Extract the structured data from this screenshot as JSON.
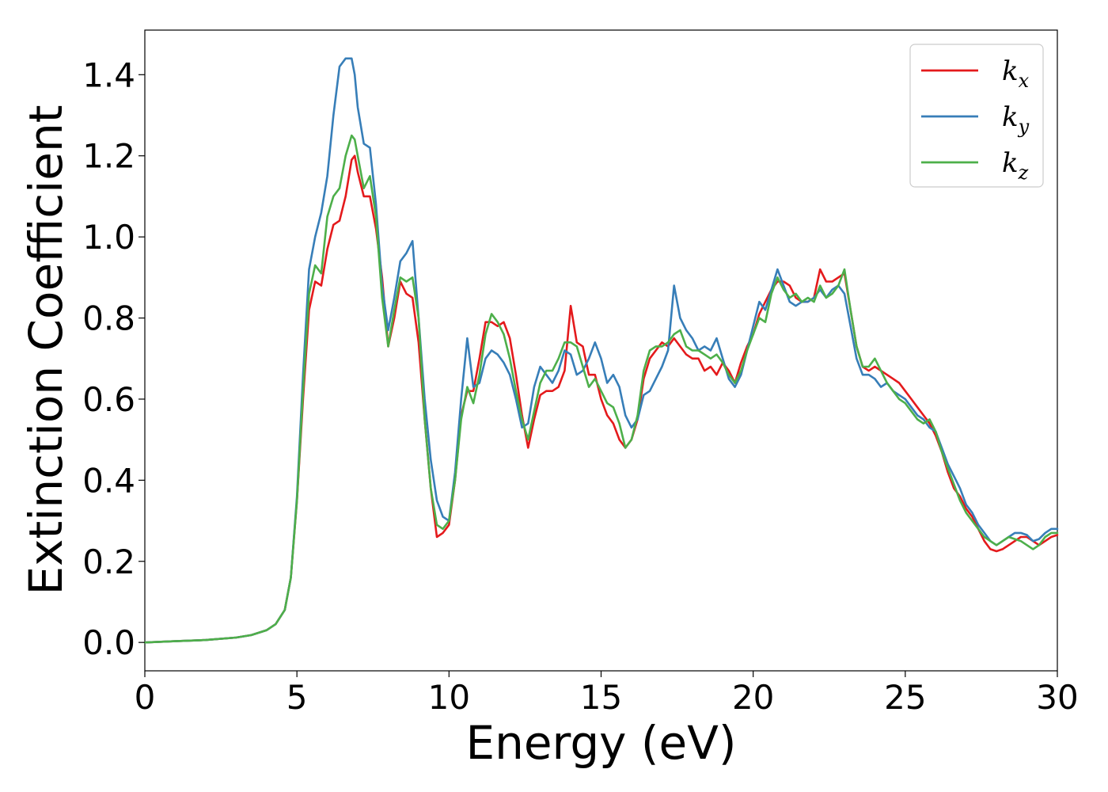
{
  "chart_data": {
    "type": "line",
    "title": "",
    "xlabel": "Energy (eV)",
    "ylabel": "Extinction Coefficient",
    "xlim": [
      0,
      30
    ],
    "ylim": [
      -0.07,
      1.51
    ],
    "xticks": [
      0,
      5,
      10,
      15,
      20,
      25,
      30
    ],
    "xtick_labels": [
      "0",
      "5",
      "10",
      "15",
      "20",
      "25",
      "30"
    ],
    "yticks": [
      0.0,
      0.2,
      0.4,
      0.6,
      0.8,
      1.0,
      1.2,
      1.4
    ],
    "ytick_labels": [
      "0.0",
      "0.2",
      "0.4",
      "0.6",
      "0.8",
      "1.0",
      "1.2",
      "1.4"
    ],
    "grid": false,
    "legend_position": "top-right",
    "series": [
      {
        "name": "k_x",
        "label_base": "k",
        "label_sub": "x",
        "color": "#e41a1c",
        "x": [
          0,
          1,
          2,
          3,
          3.5,
          4,
          4.3,
          4.6,
          4.8,
          5.0,
          5.2,
          5.4,
          5.6,
          5.8,
          6.0,
          6.2,
          6.4,
          6.6,
          6.8,
          6.9,
          7.0,
          7.2,
          7.4,
          7.6,
          7.8,
          8.0,
          8.2,
          8.4,
          8.6,
          8.8,
          9.0,
          9.2,
          9.4,
          9.6,
          9.8,
          10.0,
          10.2,
          10.4,
          10.6,
          10.8,
          11.0,
          11.2,
          11.4,
          11.6,
          11.8,
          12.0,
          12.2,
          12.4,
          12.6,
          12.8,
          13.0,
          13.2,
          13.4,
          13.6,
          13.8,
          14.0,
          14.2,
          14.4,
          14.6,
          14.8,
          15.0,
          15.2,
          15.4,
          15.6,
          15.8,
          16.0,
          16.2,
          16.4,
          16.6,
          16.8,
          17.0,
          17.2,
          17.4,
          17.6,
          17.8,
          18.0,
          18.2,
          18.4,
          18.6,
          18.8,
          19.0,
          19.2,
          19.4,
          19.6,
          19.8,
          20.0,
          20.2,
          20.4,
          20.6,
          20.8,
          21.0,
          21.2,
          21.4,
          21.6,
          21.8,
          22.0,
          22.2,
          22.4,
          22.6,
          22.8,
          23.0,
          23.2,
          23.4,
          23.6,
          23.8,
          24.0,
          24.2,
          24.4,
          24.6,
          24.8,
          25.0,
          25.2,
          25.4,
          25.6,
          25.8,
          26.0,
          26.2,
          26.4,
          26.6,
          26.8,
          27.0,
          27.2,
          27.4,
          27.6,
          27.8,
          28.0,
          28.2,
          28.4,
          28.6,
          28.8,
          29.0,
          29.2,
          29.4,
          29.6,
          29.8,
          30.0
        ],
        "y": [
          0.0,
          0.003,
          0.006,
          0.012,
          0.018,
          0.03,
          0.045,
          0.08,
          0.16,
          0.35,
          0.6,
          0.82,
          0.89,
          0.88,
          0.97,
          1.03,
          1.04,
          1.1,
          1.19,
          1.2,
          1.16,
          1.1,
          1.1,
          1.02,
          0.9,
          0.73,
          0.8,
          0.89,
          0.86,
          0.85,
          0.74,
          0.55,
          0.38,
          0.26,
          0.27,
          0.29,
          0.4,
          0.56,
          0.62,
          0.62,
          0.7,
          0.79,
          0.79,
          0.78,
          0.79,
          0.75,
          0.66,
          0.56,
          0.48,
          0.55,
          0.61,
          0.62,
          0.62,
          0.63,
          0.67,
          0.83,
          0.74,
          0.73,
          0.66,
          0.66,
          0.6,
          0.56,
          0.54,
          0.5,
          0.48,
          0.5,
          0.55,
          0.65,
          0.7,
          0.72,
          0.74,
          0.73,
          0.75,
          0.73,
          0.71,
          0.7,
          0.7,
          0.67,
          0.68,
          0.66,
          0.69,
          0.67,
          0.64,
          0.69,
          0.73,
          0.76,
          0.81,
          0.84,
          0.87,
          0.89,
          0.89,
          0.88,
          0.85,
          0.84,
          0.84,
          0.85,
          0.92,
          0.89,
          0.89,
          0.9,
          0.91,
          0.82,
          0.73,
          0.68,
          0.67,
          0.68,
          0.67,
          0.66,
          0.65,
          0.64,
          0.62,
          0.6,
          0.58,
          0.56,
          0.54,
          0.51,
          0.47,
          0.42,
          0.38,
          0.36,
          0.33,
          0.31,
          0.28,
          0.25,
          0.23,
          0.225,
          0.23,
          0.24,
          0.25,
          0.26,
          0.26,
          0.25,
          0.24,
          0.25,
          0.26,
          0.265
        ]
      },
      {
        "name": "k_y",
        "label_base": "k",
        "label_sub": "y",
        "color": "#377eb8",
        "x": [
          0,
          1,
          2,
          3,
          3.5,
          4,
          4.3,
          4.6,
          4.8,
          5.0,
          5.2,
          5.4,
          5.6,
          5.8,
          6.0,
          6.2,
          6.4,
          6.6,
          6.8,
          6.9,
          7.0,
          7.2,
          7.4,
          7.6,
          7.8,
          8.0,
          8.2,
          8.4,
          8.6,
          8.8,
          9.0,
          9.2,
          9.4,
          9.6,
          9.8,
          10.0,
          10.2,
          10.4,
          10.6,
          10.8,
          11.0,
          11.2,
          11.4,
          11.6,
          11.8,
          12.0,
          12.2,
          12.4,
          12.6,
          12.8,
          13.0,
          13.2,
          13.4,
          13.6,
          13.8,
          14.0,
          14.2,
          14.4,
          14.6,
          14.8,
          15.0,
          15.2,
          15.4,
          15.6,
          15.8,
          16.0,
          16.2,
          16.4,
          16.6,
          16.8,
          17.0,
          17.2,
          17.4,
          17.6,
          17.8,
          18.0,
          18.2,
          18.4,
          18.6,
          18.8,
          19.0,
          19.2,
          19.4,
          19.6,
          19.8,
          20.0,
          20.2,
          20.4,
          20.6,
          20.8,
          21.0,
          21.2,
          21.4,
          21.6,
          21.8,
          22.0,
          22.2,
          22.4,
          22.6,
          22.8,
          23.0,
          23.2,
          23.4,
          23.6,
          23.8,
          24.0,
          24.2,
          24.4,
          24.6,
          24.8,
          25.0,
          25.2,
          25.4,
          25.6,
          25.8,
          26.0,
          26.2,
          26.4,
          26.6,
          26.8,
          27.0,
          27.2,
          27.4,
          27.6,
          27.8,
          28.0,
          28.2,
          28.4,
          28.6,
          28.8,
          29.0,
          29.2,
          29.4,
          29.6,
          29.8,
          30.0
        ],
        "y": [
          0.0,
          0.003,
          0.006,
          0.012,
          0.018,
          0.03,
          0.045,
          0.08,
          0.16,
          0.36,
          0.66,
          0.92,
          1.0,
          1.06,
          1.15,
          1.3,
          1.42,
          1.44,
          1.44,
          1.4,
          1.32,
          1.23,
          1.22,
          1.08,
          0.88,
          0.77,
          0.85,
          0.94,
          0.96,
          0.99,
          0.8,
          0.6,
          0.45,
          0.35,
          0.31,
          0.3,
          0.42,
          0.6,
          0.75,
          0.63,
          0.64,
          0.7,
          0.72,
          0.71,
          0.69,
          0.66,
          0.6,
          0.53,
          0.54,
          0.63,
          0.68,
          0.66,
          0.64,
          0.67,
          0.72,
          0.71,
          0.66,
          0.67,
          0.7,
          0.74,
          0.7,
          0.64,
          0.66,
          0.63,
          0.56,
          0.53,
          0.55,
          0.61,
          0.62,
          0.65,
          0.68,
          0.72,
          0.88,
          0.8,
          0.77,
          0.75,
          0.72,
          0.73,
          0.72,
          0.75,
          0.7,
          0.65,
          0.63,
          0.66,
          0.72,
          0.78,
          0.84,
          0.82,
          0.87,
          0.92,
          0.88,
          0.84,
          0.83,
          0.84,
          0.84,
          0.85,
          0.87,
          0.85,
          0.87,
          0.88,
          0.86,
          0.78,
          0.7,
          0.66,
          0.66,
          0.65,
          0.63,
          0.64,
          0.62,
          0.61,
          0.6,
          0.58,
          0.56,
          0.55,
          0.53,
          0.52,
          0.48,
          0.44,
          0.41,
          0.38,
          0.34,
          0.32,
          0.29,
          0.27,
          0.25,
          0.24,
          0.25,
          0.26,
          0.27,
          0.27,
          0.265,
          0.25,
          0.255,
          0.27,
          0.28,
          0.28
        ]
      },
      {
        "name": "k_z",
        "label_base": "k",
        "label_sub": "z",
        "color": "#4daf4a",
        "x": [
          0,
          1,
          2,
          3,
          3.5,
          4,
          4.3,
          4.6,
          4.8,
          5.0,
          5.2,
          5.4,
          5.6,
          5.8,
          6.0,
          6.2,
          6.4,
          6.6,
          6.8,
          6.9,
          7.0,
          7.2,
          7.4,
          7.6,
          7.8,
          8.0,
          8.2,
          8.4,
          8.6,
          8.8,
          9.0,
          9.2,
          9.4,
          9.6,
          9.8,
          10.0,
          10.2,
          10.4,
          10.6,
          10.8,
          11.0,
          11.2,
          11.4,
          11.6,
          11.8,
          12.0,
          12.2,
          12.4,
          12.6,
          12.8,
          13.0,
          13.2,
          13.4,
          13.6,
          13.8,
          14.0,
          14.2,
          14.4,
          14.6,
          14.8,
          15.0,
          15.2,
          15.4,
          15.6,
          15.8,
          16.0,
          16.2,
          16.4,
          16.6,
          16.8,
          17.0,
          17.2,
          17.4,
          17.6,
          17.8,
          18.0,
          18.2,
          18.4,
          18.6,
          18.8,
          19.0,
          19.2,
          19.4,
          19.6,
          19.8,
          20.0,
          20.2,
          20.4,
          20.6,
          20.8,
          21.0,
          21.2,
          21.4,
          21.6,
          21.8,
          22.0,
          22.2,
          22.4,
          22.6,
          22.8,
          23.0,
          23.2,
          23.4,
          23.6,
          23.8,
          24.0,
          24.2,
          24.4,
          24.6,
          24.8,
          25.0,
          25.2,
          25.4,
          25.6,
          25.8,
          26.0,
          26.2,
          26.4,
          26.6,
          26.8,
          27.0,
          27.2,
          27.4,
          27.6,
          27.8,
          28.0,
          28.2,
          28.4,
          28.6,
          28.8,
          29.0,
          29.2,
          29.4,
          29.6,
          29.8,
          30.0
        ],
        "y": [
          0.0,
          0.003,
          0.006,
          0.012,
          0.018,
          0.03,
          0.045,
          0.08,
          0.16,
          0.35,
          0.62,
          0.86,
          0.93,
          0.91,
          1.05,
          1.1,
          1.12,
          1.2,
          1.25,
          1.24,
          1.2,
          1.12,
          1.15,
          1.05,
          0.85,
          0.73,
          0.82,
          0.9,
          0.89,
          0.9,
          0.8,
          0.55,
          0.38,
          0.29,
          0.28,
          0.3,
          0.4,
          0.55,
          0.63,
          0.59,
          0.66,
          0.76,
          0.81,
          0.79,
          0.76,
          0.7,
          0.62,
          0.55,
          0.5,
          0.57,
          0.64,
          0.67,
          0.67,
          0.7,
          0.74,
          0.74,
          0.73,
          0.68,
          0.63,
          0.65,
          0.62,
          0.59,
          0.58,
          0.54,
          0.48,
          0.5,
          0.56,
          0.67,
          0.72,
          0.73,
          0.73,
          0.74,
          0.76,
          0.77,
          0.73,
          0.72,
          0.72,
          0.71,
          0.7,
          0.71,
          0.69,
          0.66,
          0.64,
          0.67,
          0.72,
          0.76,
          0.8,
          0.79,
          0.86,
          0.9,
          0.87,
          0.85,
          0.86,
          0.84,
          0.85,
          0.84,
          0.88,
          0.85,
          0.86,
          0.88,
          0.92,
          0.82,
          0.73,
          0.68,
          0.68,
          0.7,
          0.67,
          0.64,
          0.62,
          0.6,
          0.59,
          0.57,
          0.55,
          0.54,
          0.55,
          0.52,
          0.47,
          0.43,
          0.39,
          0.35,
          0.32,
          0.3,
          0.28,
          0.26,
          0.25,
          0.24,
          0.25,
          0.26,
          0.255,
          0.25,
          0.24,
          0.23,
          0.24,
          0.26,
          0.27,
          0.27
        ]
      }
    ]
  }
}
